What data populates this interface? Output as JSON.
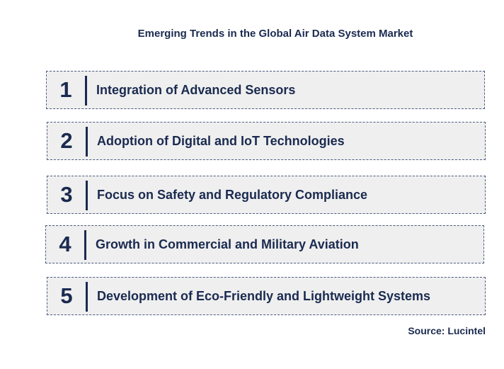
{
  "title": "Emerging Trends in the Global Air Data System Market",
  "trends": [
    {
      "number": "1",
      "label": "Integration of Advanced Sensors"
    },
    {
      "number": "2",
      "label": "Adoption of Digital and IoT Technologies"
    },
    {
      "number": "3",
      "label": "Focus on Safety and Regulatory Compliance"
    },
    {
      "number": "4",
      "label": "Growth in Commercial and Military Aviation"
    },
    {
      "number": "5",
      "label": "Development of Eco-Friendly and Lightweight Systems"
    }
  ],
  "source": "Source: Lucintel",
  "colors": {
    "text": "#1a2a50",
    "box_fill": "#efefef",
    "box_border": "#4a5a80"
  }
}
